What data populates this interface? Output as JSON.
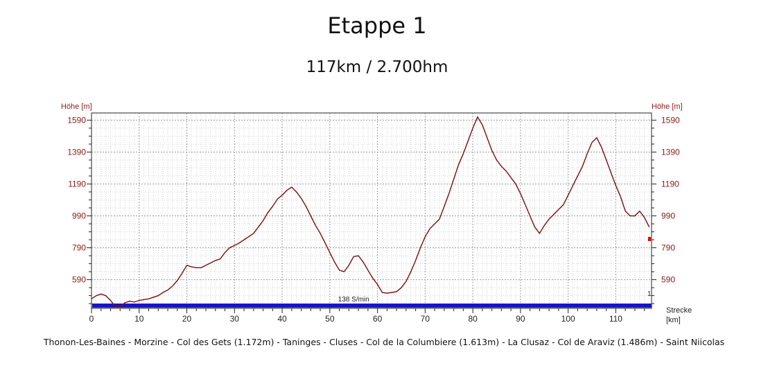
{
  "title": "Etappe  1",
  "subtitle": "117km / 2.700hm",
  "caption": "Thonon-Les-Baines - Morzine - Col des Gets (1.172m) - Taninges - Cluses - Col de la Columbiere (1.613m) - La Clusaz - Col de Araviz (1.486m) - Saint Niicolas",
  "chart_data": {
    "type": "line",
    "ylabel": "Höhe [m]",
    "xlabel": "Strecke [km]",
    "xlabel_lines": [
      "Strecke",
      "[km]"
    ],
    "xlim": [
      0,
      117.5
    ],
    "ylim": [
      410,
      1635
    ],
    "y_ticks": [
      590,
      790,
      990,
      1190,
      1390,
      1590
    ],
    "x_ticks": [
      0,
      10,
      20,
      30,
      40,
      50,
      60,
      70,
      80,
      90,
      100,
      110
    ],
    "grid": true,
    "line_color": "#7a0d0d",
    "bar_color": "#1616c8",
    "band_label": "138 S/min",
    "right_marker": "1",
    "series": [
      {
        "x": [
          0,
          1,
          2,
          3,
          4,
          5,
          6,
          7,
          8,
          9,
          10,
          11,
          12,
          13,
          14,
          15,
          16,
          17,
          18,
          19,
          20,
          21,
          22,
          23,
          24,
          25,
          26,
          27,
          28,
          29,
          30,
          31,
          32,
          33,
          34,
          35,
          36,
          37,
          38,
          39,
          40,
          41,
          42,
          43,
          44,
          45,
          46,
          47,
          48,
          49,
          50,
          51,
          52,
          53,
          54,
          55,
          56,
          57,
          58,
          59,
          60,
          61,
          62,
          63,
          64,
          65,
          66,
          67,
          68,
          69,
          70,
          71,
          72,
          73,
          74,
          75,
          76,
          77,
          78,
          79,
          80,
          81,
          82,
          83,
          84,
          85,
          86,
          87,
          88,
          89,
          90,
          91,
          92,
          93,
          94,
          95,
          96,
          97,
          98,
          99,
          100,
          101,
          102,
          103,
          104,
          105,
          106,
          107,
          108,
          109,
          110,
          111,
          112,
          113,
          114,
          115,
          116,
          117
        ],
        "values": [
          470,
          490,
          500,
          490,
          460,
          420,
          420,
          445,
          455,
          450,
          460,
          465,
          470,
          480,
          490,
          510,
          525,
          550,
          585,
          630,
          680,
          670,
          665,
          665,
          680,
          695,
          710,
          720,
          760,
          790,
          805,
          820,
          840,
          860,
          880,
          920,
          960,
          1010,
          1050,
          1095,
          1120,
          1150,
          1170,
          1140,
          1100,
          1050,
          990,
          930,
          880,
          820,
          760,
          700,
          650,
          640,
          680,
          735,
          740,
          700,
          650,
          600,
          560,
          510,
          505,
          510,
          515,
          540,
          580,
          640,
          710,
          790,
          860,
          910,
          940,
          970,
          1050,
          1130,
          1220,
          1310,
          1380,
          1460,
          1540,
          1610,
          1560,
          1480,
          1400,
          1340,
          1300,
          1270,
          1230,
          1190,
          1130,
          1060,
          990,
          920,
          880,
          930,
          970,
          1000,
          1030,
          1060,
          1120,
          1180,
          1240,
          1300,
          1380,
          1450,
          1480,
          1420,
          1340,
          1260,
          1180,
          1110,
          1020,
          990,
          990,
          1020,
          980,
          920
        ]
      }
    ]
  }
}
